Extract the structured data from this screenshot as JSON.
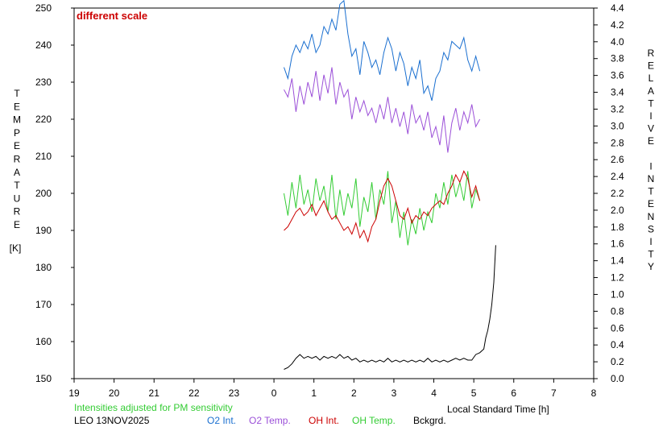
{
  "chart_data": {
    "type": "line",
    "note": "different scale",
    "left_axis_title_letters": [
      "T",
      "E",
      "M",
      "P",
      "E",
      "R",
      "A",
      "T",
      "U",
      "R",
      "E"
    ],
    "left_axis_unit": "[K]",
    "right_axis_title_letters": [
      "R",
      "E",
      "L",
      "A",
      "T",
      "I",
      "V",
      "E",
      "",
      "I",
      "N",
      "T",
      "E",
      "N",
      "S",
      "I",
      "T",
      "Y"
    ],
    "xlabel": "Local Standard Time [h]",
    "x_ticks": [
      "19",
      "20",
      "21",
      "22",
      "23",
      "0",
      "1",
      "2",
      "3",
      "4",
      "5",
      "6",
      "7",
      "8"
    ],
    "xlim": [
      -5,
      8
    ],
    "y_left_lim": [
      150,
      250
    ],
    "y_left_ticks": [
      150,
      160,
      170,
      180,
      190,
      200,
      210,
      220,
      230,
      240,
      250
    ],
    "y_right_lim": [
      0.0,
      4.4
    ],
    "y_right_ticks": [
      "0.0",
      "0.2",
      "0.4",
      "0.6",
      "0.8",
      "1.0",
      "1.2",
      "1.4",
      "1.6",
      "1.8",
      "2.0",
      "2.2",
      "2.4",
      "2.6",
      "2.8",
      "3.0",
      "3.2",
      "3.4",
      "3.6",
      "3.8",
      "4.0",
      "4.2",
      "4.4"
    ],
    "footnote": "Intensities adjusted for PM sensitivity",
    "station_date": "LEO 13NOV2025",
    "legend": [
      {
        "label": "O2 Int.",
        "color": "#1a6fd0"
      },
      {
        "label": "O2 Temp.",
        "color": "#9b4fd8"
      },
      {
        "label": "OH Int.",
        "color": "#cc0000"
      },
      {
        "label": "OH Temp.",
        "color": "#33cc33"
      },
      {
        "label": "Bckgrd.",
        "color": "#000000"
      }
    ],
    "series": [
      {
        "name": "O2 Int.",
        "color": "#1a6fd0",
        "axis": "left",
        "x": [
          0.25,
          0.35,
          0.45,
          0.55,
          0.65,
          0.75,
          0.85,
          0.95,
          1.05,
          1.15,
          1.25,
          1.35,
          1.45,
          1.55,
          1.65,
          1.75,
          1.85,
          1.95,
          2.05,
          2.15,
          2.25,
          2.35,
          2.45,
          2.55,
          2.65,
          2.75,
          2.85,
          2.95,
          3.05,
          3.15,
          3.25,
          3.35,
          3.45,
          3.55,
          3.65,
          3.75,
          3.85,
          3.95,
          4.05,
          4.15,
          4.25,
          4.35,
          4.45,
          4.55,
          4.65,
          4.75,
          4.85,
          4.95,
          5.05,
          5.15
        ],
        "y": [
          234,
          231,
          237,
          240,
          238,
          241,
          239,
          243,
          238,
          240,
          245,
          243,
          247,
          244,
          251,
          252,
          243,
          237,
          239,
          232,
          241,
          238,
          234,
          236,
          232,
          238,
          242,
          239,
          233,
          238,
          235,
          229,
          234,
          231,
          236,
          227,
          229,
          225,
          231,
          233,
          238,
          236,
          241,
          240,
          239,
          242,
          236,
          233,
          237,
          233
        ]
      },
      {
        "name": "O2 Temp.",
        "color": "#9b4fd8",
        "axis": "left",
        "x": [
          0.25,
          0.35,
          0.45,
          0.55,
          0.65,
          0.75,
          0.85,
          0.95,
          1.05,
          1.15,
          1.25,
          1.35,
          1.45,
          1.55,
          1.65,
          1.75,
          1.85,
          1.95,
          2.05,
          2.15,
          2.25,
          2.35,
          2.45,
          2.55,
          2.65,
          2.75,
          2.85,
          2.95,
          3.05,
          3.15,
          3.25,
          3.35,
          3.45,
          3.55,
          3.65,
          3.75,
          3.85,
          3.95,
          4.05,
          4.15,
          4.25,
          4.35,
          4.45,
          4.55,
          4.65,
          4.75,
          4.85,
          4.95,
          5.05,
          5.15
        ],
        "y": [
          228,
          226,
          231,
          222,
          229,
          224,
          230,
          226,
          233,
          225,
          232,
          227,
          234,
          224,
          230,
          226,
          228,
          220,
          226,
          222,
          225,
          221,
          223,
          219,
          224,
          220,
          226,
          219,
          223,
          218,
          222,
          216,
          224,
          219,
          221,
          217,
          222,
          215,
          218,
          213,
          221,
          211,
          219,
          223,
          217,
          222,
          219,
          224,
          218,
          220
        ]
      },
      {
        "name": "OH Temp.",
        "color": "#33cc33",
        "axis": "left",
        "x": [
          0.25,
          0.35,
          0.45,
          0.55,
          0.65,
          0.75,
          0.85,
          0.95,
          1.05,
          1.15,
          1.25,
          1.35,
          1.45,
          1.55,
          1.65,
          1.75,
          1.85,
          1.95,
          2.05,
          2.15,
          2.25,
          2.35,
          2.45,
          2.55,
          2.65,
          2.75,
          2.85,
          2.95,
          3.05,
          3.15,
          3.25,
          3.35,
          3.45,
          3.55,
          3.65,
          3.75,
          3.85,
          3.95,
          4.05,
          4.15,
          4.25,
          4.35,
          4.45,
          4.55,
          4.65,
          4.75,
          4.85,
          4.95,
          5.05,
          5.15
        ],
        "y": [
          200,
          194,
          203,
          196,
          205,
          197,
          201,
          195,
          204,
          198,
          202,
          195,
          205,
          193,
          201,
          194,
          200,
          196,
          204,
          191,
          199,
          195,
          203,
          193,
          201,
          197,
          206,
          192,
          198,
          188,
          195,
          186,
          193,
          189,
          196,
          190,
          195,
          192,
          200,
          196,
          203,
          197,
          205,
          199,
          203,
          198,
          206,
          196,
          201,
          198
        ]
      },
      {
        "name": "OH Int.",
        "color": "#cc0000",
        "axis": "left",
        "x": [
          0.25,
          0.35,
          0.45,
          0.55,
          0.65,
          0.75,
          0.85,
          0.95,
          1.05,
          1.15,
          1.25,
          1.35,
          1.45,
          1.55,
          1.65,
          1.75,
          1.85,
          1.95,
          2.05,
          2.15,
          2.25,
          2.35,
          2.45,
          2.55,
          2.65,
          2.75,
          2.85,
          2.95,
          3.05,
          3.15,
          3.25,
          3.35,
          3.45,
          3.55,
          3.65,
          3.75,
          3.85,
          3.95,
          4.05,
          4.15,
          4.25,
          4.35,
          4.45,
          4.55,
          4.65,
          4.75,
          4.85,
          4.95,
          5.05,
          5.15
        ],
        "y": [
          190,
          191,
          193,
          195,
          196,
          194,
          195,
          197,
          194,
          196,
          198,
          195,
          193,
          194,
          192,
          190,
          191,
          189,
          192,
          188,
          190,
          187,
          191,
          193,
          198,
          202,
          204,
          202,
          198,
          194,
          193,
          196,
          192,
          194,
          193,
          195,
          194,
          196,
          197,
          198,
          197,
          200,
          202,
          205,
          203,
          206,
          204,
          199,
          202,
          198
        ]
      },
      {
        "name": "Bckgrd.",
        "color": "#000000",
        "axis": "left",
        "x": [
          0.25,
          0.35,
          0.45,
          0.55,
          0.65,
          0.75,
          0.85,
          0.95,
          1.05,
          1.15,
          1.25,
          1.35,
          1.45,
          1.55,
          1.65,
          1.75,
          1.85,
          1.95,
          2.05,
          2.15,
          2.25,
          2.35,
          2.45,
          2.55,
          2.65,
          2.75,
          2.85,
          2.95,
          3.05,
          3.15,
          3.25,
          3.35,
          3.45,
          3.55,
          3.65,
          3.75,
          3.85,
          3.95,
          4.05,
          4.15,
          4.25,
          4.35,
          4.45,
          4.55,
          4.65,
          4.75,
          4.85,
          4.95,
          5.05,
          5.15,
          5.25,
          5.3,
          5.35,
          5.4,
          5.45,
          5.5,
          5.55
        ],
        "y": [
          152.5,
          153,
          154,
          155.5,
          156.5,
          155.5,
          156,
          155.5,
          156,
          155,
          156,
          155.5,
          156,
          155.5,
          156.5,
          155.5,
          156,
          155,
          155.5,
          154.5,
          155,
          154.5,
          155,
          154.5,
          155,
          154.5,
          155.5,
          154.5,
          155,
          154.5,
          155,
          154.5,
          155,
          154.5,
          155,
          154.5,
          155.5,
          154.5,
          155,
          154.5,
          155,
          154.5,
          155,
          155.5,
          155,
          155.5,
          155,
          155,
          156.5,
          157,
          158,
          161,
          163,
          166,
          170,
          176,
          186
        ]
      }
    ]
  }
}
